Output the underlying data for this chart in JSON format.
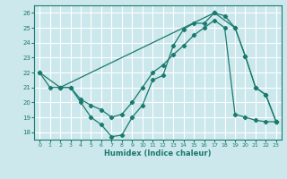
{
  "xlabel": "Humidex (Indice chaleur)",
  "bg_color": "#cce8ec",
  "grid_color": "#ffffff",
  "line_color": "#1a7a6e",
  "xlim": [
    -0.5,
    23.5
  ],
  "ylim": [
    17.5,
    26.5
  ],
  "yticks": [
    18,
    19,
    20,
    21,
    22,
    23,
    24,
    25,
    26
  ],
  "xticks": [
    0,
    1,
    2,
    3,
    4,
    5,
    6,
    7,
    8,
    9,
    10,
    11,
    12,
    13,
    14,
    15,
    16,
    17,
    18,
    19,
    20,
    21,
    22,
    23
  ],
  "line1_x": [
    0,
    1,
    2,
    3,
    4,
    5,
    6,
    7,
    8,
    9,
    10,
    11,
    12,
    13,
    14,
    15,
    16,
    17,
    18,
    19,
    20,
    21,
    22,
    23
  ],
  "line1_y": [
    22,
    21,
    21,
    21,
    20,
    19,
    18.5,
    17.7,
    17.8,
    19,
    19.8,
    21.5,
    21.8,
    23.8,
    24.9,
    25.3,
    25.3,
    26.0,
    25.8,
    25.0,
    23.1,
    21.0,
    20.5,
    18.7
  ],
  "line2_x": [
    2,
    3,
    4,
    5,
    6,
    7,
    8,
    9,
    10,
    11,
    12,
    13,
    14,
    15,
    16,
    17,
    18,
    19,
    20,
    21,
    22,
    23
  ],
  "line2_y": [
    21,
    21,
    20.2,
    19.8,
    19.5,
    19.0,
    19.2,
    20.0,
    21.0,
    22.0,
    22.5,
    23.2,
    23.8,
    24.5,
    25.0,
    25.5,
    25.0,
    19.2,
    19.0,
    18.8,
    18.7,
    18.7
  ],
  "line3_x": [
    0,
    2,
    17,
    19,
    20,
    21,
    22,
    23
  ],
  "line3_y": [
    22,
    21,
    26.0,
    25.0,
    23.1,
    21.0,
    20.5,
    18.7
  ]
}
